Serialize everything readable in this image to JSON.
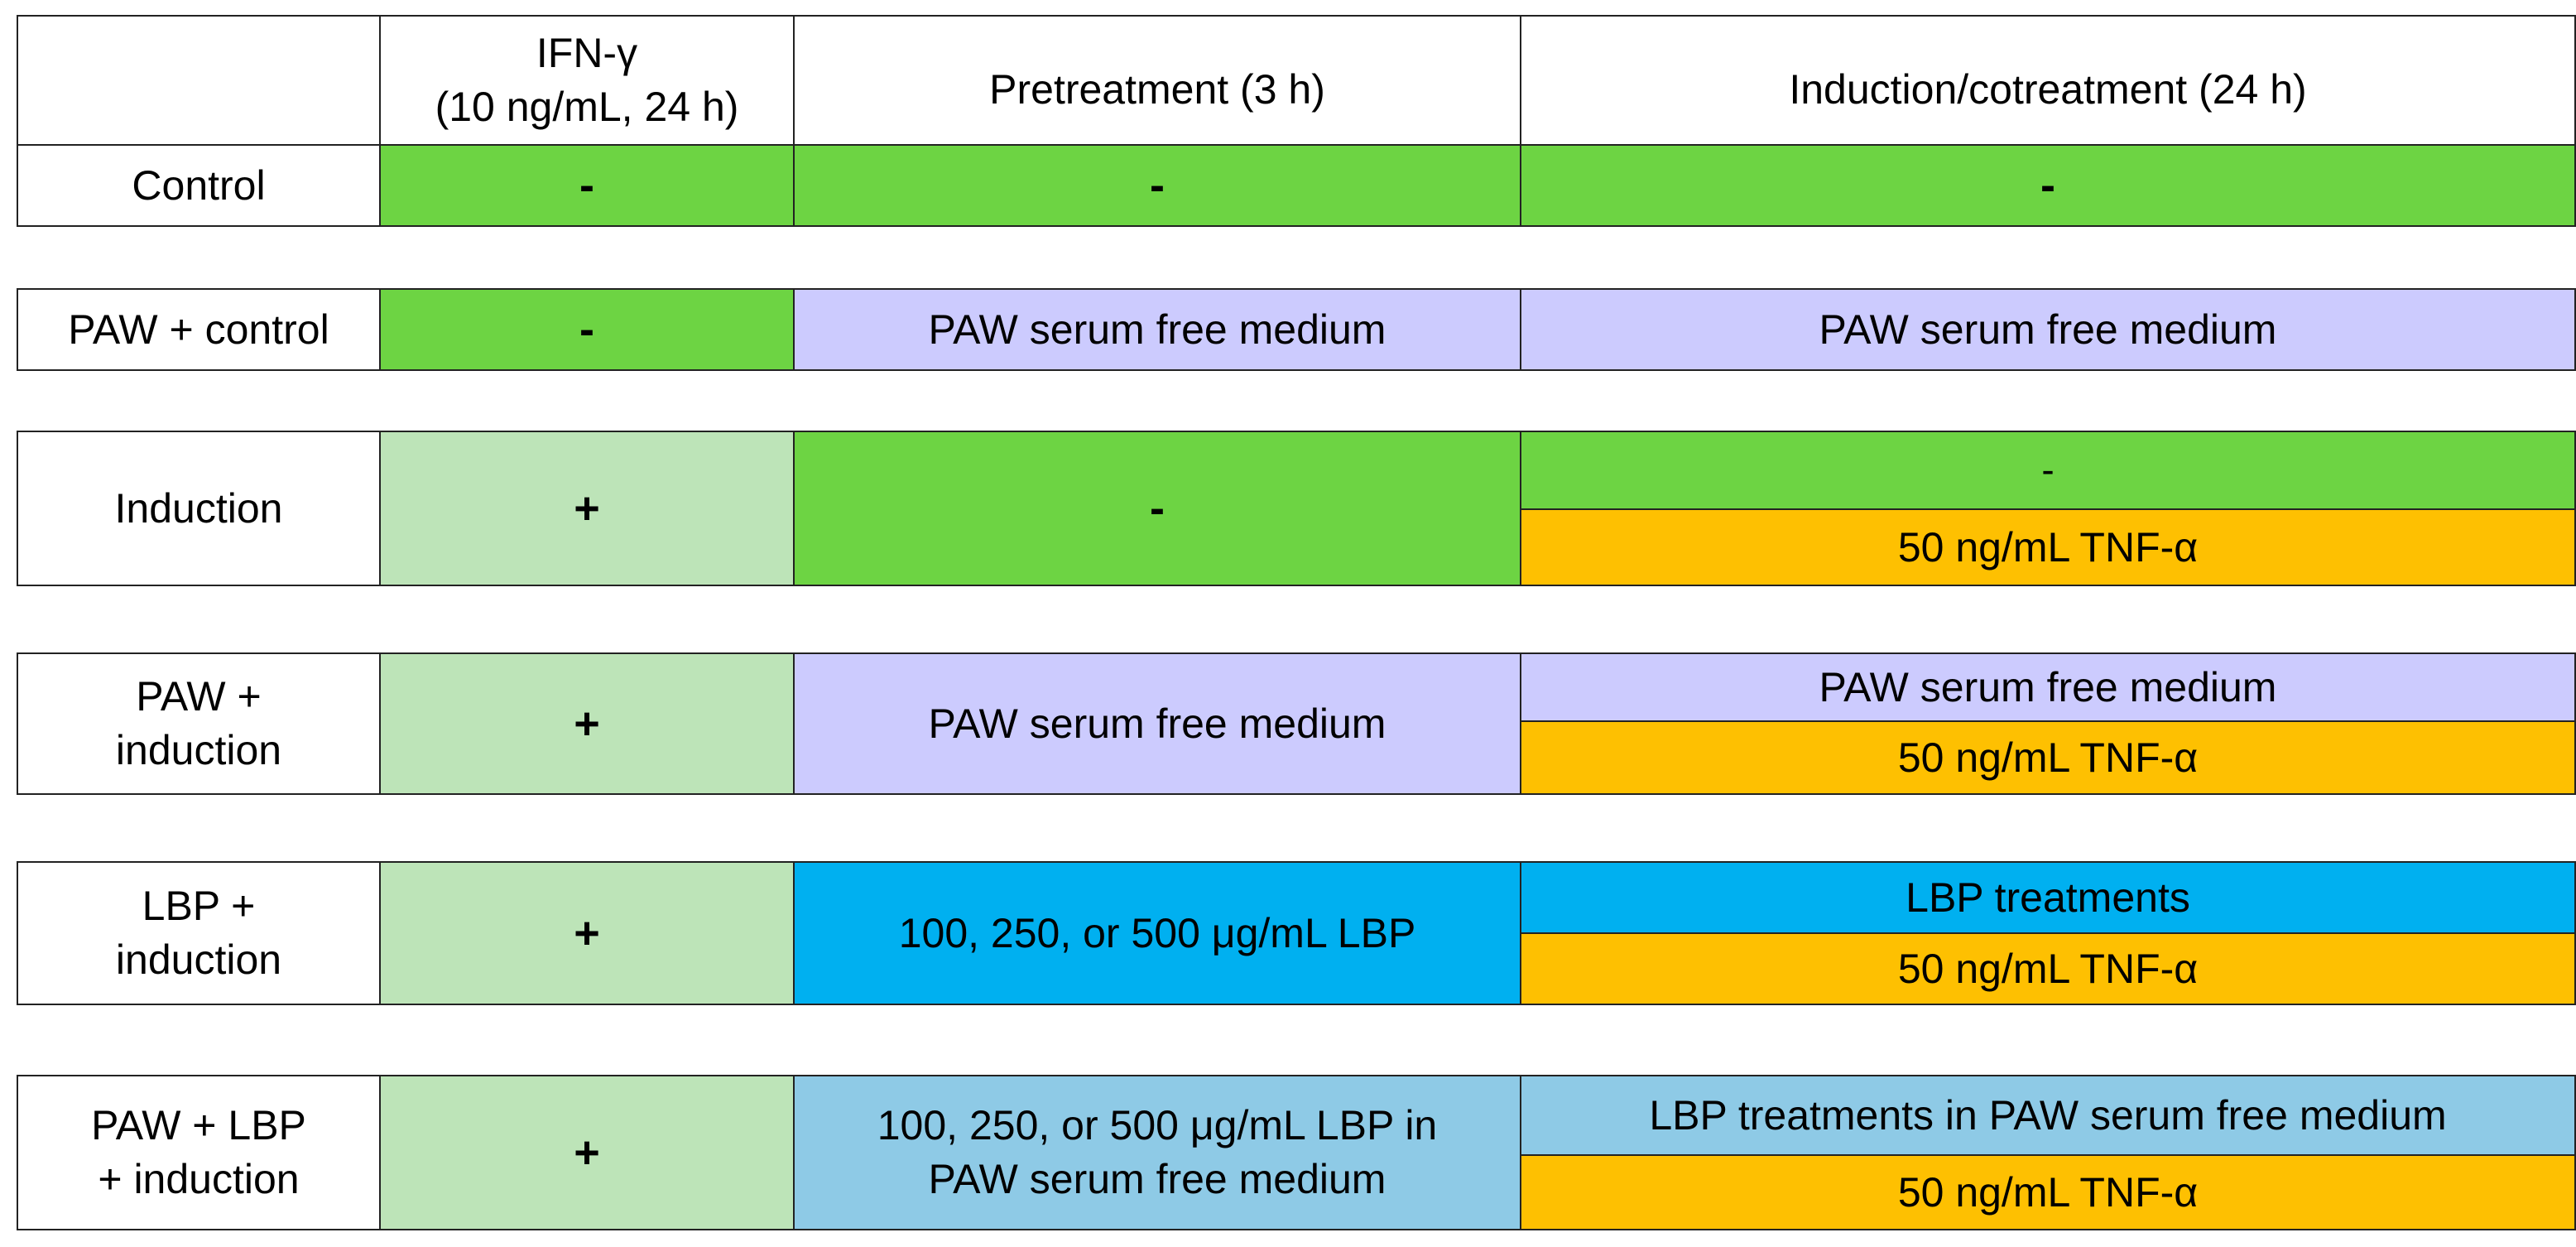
{
  "colors": {
    "green": "#6dd443",
    "light_green": "#bde4b8",
    "lavender": "#cccbfe",
    "blue": "#00b0f0",
    "light_blue": "#8ecae6",
    "orange": "#fec001",
    "white": "#ffffff"
  },
  "header": {
    "corner": "",
    "ifn": "IFN-γ\n(10 ng/mL, 24 h)",
    "pretreatment": "Pretreatment (3 h)",
    "induction": "Induction/cotreatment (24 h)"
  },
  "rows": [
    {
      "label": "Control",
      "ifn": "-",
      "pretreatment": "-",
      "induction": [
        "-"
      ]
    },
    {
      "label": "PAW + control",
      "ifn": "-",
      "pretreatment": "PAW serum free medium",
      "induction": [
        "PAW serum free medium"
      ]
    },
    {
      "label": "Induction",
      "ifn": "+",
      "pretreatment": "-",
      "induction": [
        "-",
        "50 ng/mL TNF-α"
      ]
    },
    {
      "label": "PAW +\ninduction",
      "ifn": "+",
      "pretreatment": "PAW serum free medium",
      "induction": [
        "PAW serum free medium",
        "50 ng/mL TNF-α"
      ]
    },
    {
      "label": "LBP +\ninduction",
      "ifn": "+",
      "pretreatment": "100, 250, or 500 μg/mL LBP",
      "induction": [
        "LBP treatments",
        "50 ng/mL TNF-α"
      ]
    },
    {
      "label": "PAW + LBP\n+ induction",
      "ifn": "+",
      "pretreatment": "100, 250, or 500 μg/mL LBP in\nPAW serum free medium",
      "induction": [
        "LBP treatments in PAW serum free medium",
        "50 ng/mL TNF-α"
      ]
    }
  ]
}
